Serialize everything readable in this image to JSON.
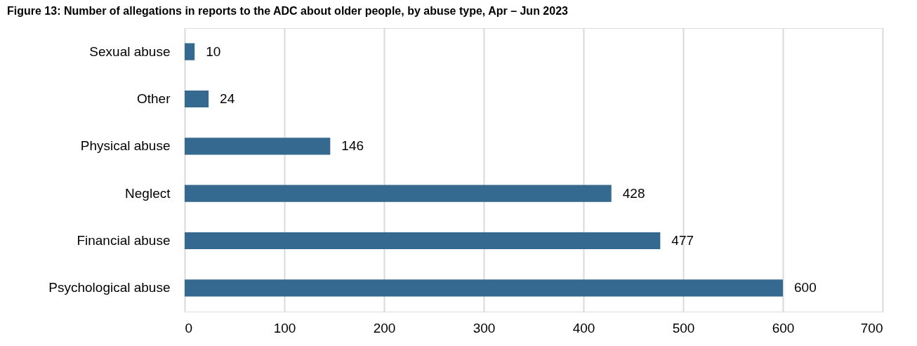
{
  "chart_data": {
    "type": "bar",
    "orientation": "horizontal",
    "title": "Figure 13: Number of allegations in reports to the ADC about older people, by abuse type, Apr – Jun 2023",
    "categories": [
      "Sexual abuse",
      "Other",
      "Physical abuse",
      "Neglect",
      "Financial abuse",
      "Psychological abuse"
    ],
    "values": [
      10,
      24,
      146,
      428,
      477,
      600
    ],
    "color": "#35698f",
    "xlim": [
      0,
      700
    ],
    "xticks": [
      0,
      100,
      200,
      300,
      400,
      500,
      600,
      700
    ],
    "grid": "x",
    "data_labels": true
  }
}
